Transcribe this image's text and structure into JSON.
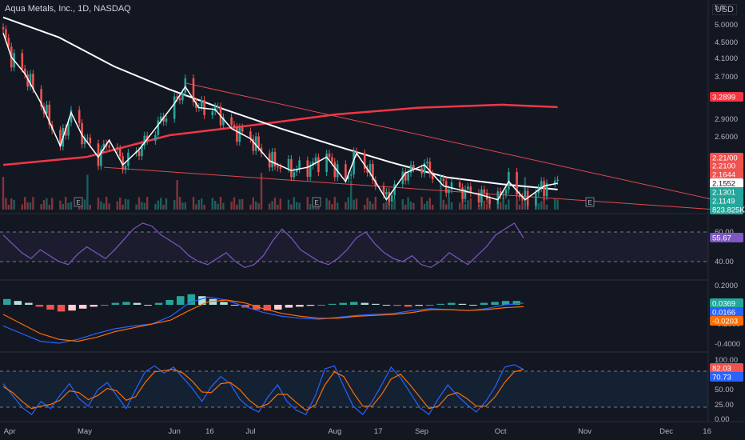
{
  "header": {
    "symbol": "Aqua Metals, Inc., 1D, NASDAQ",
    "currency": "USD"
  },
  "time_axis": [
    "Apr",
    "May",
    "Jun",
    "16",
    "Jul",
    "Aug",
    "17",
    "Sep",
    "Oct",
    "Nov",
    "Dec",
    "16"
  ],
  "colors": {
    "bg": "#131722",
    "up": "#26a69a",
    "down": "#ef5350",
    "ma_white": "#ffffff",
    "ma_red": "#f23645",
    "rsi": "#7e57c2",
    "macd": "#2962ff",
    "signal": "#ff6d00",
    "trend": "#e0494d"
  },
  "chart_data": [
    {
      "type": "candlestick",
      "panel": "price",
      "y_scale": "log",
      "ylim": [
        1.95,
        5.5
      ],
      "y_ticks": [
        "5.5",
        "5.0000",
        "4.5000",
        "4.1000",
        "3.7000",
        "3.2899",
        "2.9000",
        "2.6000"
      ],
      "price_badges": [
        {
          "label": "2.21/00",
          "color": "#ef5350"
        },
        {
          "label": "2.2100",
          "color": "#ef5350"
        },
        {
          "label": "2.1644",
          "color": "#ef5350"
        },
        {
          "label": "2.1552",
          "color": "#ffffff"
        },
        {
          "label": "2.1301",
          "color": "#26a69a"
        },
        {
          "label": "2.1149",
          "color": "#26a69a"
        },
        {
          "label": "823.825K",
          "color": "#26a69a"
        }
      ],
      "ma_badge": "3.2899",
      "event_markers": [
        "E",
        "E",
        "E"
      ],
      "anchors": [
        [
          "2024-04-01",
          4.8
        ],
        [
          "2024-04-04",
          4.25
        ],
        [
          "2024-04-09",
          3.9
        ],
        [
          "2024-04-15",
          3.35
        ],
        [
          "2024-04-22",
          2.7
        ],
        [
          "2024-04-26",
          3.2
        ],
        [
          "2024-04-30",
          2.85
        ],
        [
          "2024-05-06",
          2.55
        ],
        [
          "2024-05-10",
          2.78
        ],
        [
          "2024-05-15",
          2.45
        ],
        [
          "2024-05-21",
          2.65
        ],
        [
          "2024-05-27",
          2.95
        ],
        [
          "2024-06-03",
          3.35
        ],
        [
          "2024-06-07",
          3.65
        ],
        [
          "2024-06-12",
          3.28
        ],
        [
          "2024-06-18",
          3.25
        ],
        [
          "2024-06-24",
          2.95
        ],
        [
          "2024-07-01",
          2.8
        ],
        [
          "2024-07-08",
          2.5
        ],
        [
          "2024-07-16",
          2.38
        ],
        [
          "2024-07-22",
          2.42
        ],
        [
          "2024-07-29",
          2.55
        ],
        [
          "2024-08-05",
          2.25
        ],
        [
          "2024-08-09",
          2.6
        ],
        [
          "2024-08-14",
          2.35
        ],
        [
          "2024-08-20",
          2.05
        ],
        [
          "2024-08-27",
          2.35
        ],
        [
          "2024-09-03",
          2.45
        ],
        [
          "2024-09-10",
          2.2
        ],
        [
          "2024-09-17",
          2.15
        ],
        [
          "2024-09-24",
          2.1
        ],
        [
          "2024-09-30",
          2.05
        ],
        [
          "2024-10-04",
          2.25
        ],
        [
          "2024-10-10",
          2.05
        ],
        [
          "2024-10-17",
          2.2
        ],
        [
          "2024-10-22",
          2.23
        ]
      ],
      "sma_white": [
        [
          0,
          5.2
        ],
        [
          0.1,
          4.7
        ],
        [
          0.2,
          4.05
        ],
        [
          0.3,
          3.6
        ],
        [
          0.4,
          3.25
        ],
        [
          0.5,
          2.95
        ],
        [
          0.6,
          2.7
        ],
        [
          0.7,
          2.48
        ],
        [
          0.8,
          2.3
        ],
        [
          0.9,
          2.22
        ],
        [
          1.0,
          2.16
        ]
      ],
      "sma_red": [
        [
          0,
          2.45
        ],
        [
          0.15,
          2.55
        ],
        [
          0.3,
          2.85
        ],
        [
          0.45,
          3.0
        ],
        [
          0.6,
          3.17
        ],
        [
          0.75,
          3.28
        ],
        [
          0.9,
          3.33
        ],
        [
          1.0,
          3.29
        ]
      ]
    },
    {
      "type": "line",
      "panel": "rsi",
      "name": "RSI",
      "y_ticks": [
        "60.00",
        "40.00"
      ],
      "last_value": "55.67",
      "values": [
        58,
        52,
        46,
        42,
        48,
        44,
        40,
        38,
        45,
        50,
        46,
        42,
        48,
        55,
        62,
        66,
        64,
        58,
        54,
        50,
        44,
        40,
        38,
        42,
        46,
        40,
        36,
        38,
        44,
        54,
        62,
        56,
        48,
        44,
        40,
        38,
        42,
        48,
        56,
        60,
        52,
        46,
        42,
        40,
        44,
        38,
        36,
        40,
        46,
        42,
        38,
        44,
        50,
        58,
        62,
        66,
        56
      ]
    },
    {
      "type": "macd",
      "panel": "macd",
      "y_ticks": [
        "0.2000",
        "-0.2000",
        "-0.4000"
      ],
      "badges": [
        {
          "label": "0.0369",
          "color": "#26a69a"
        },
        {
          "label": "0.0166",
          "color": "#2962ff"
        },
        {
          "label": "-0.0203",
          "color": "#ff6d00"
        }
      ],
      "histogram": [
        0.06,
        0.04,
        0.02,
        -0.02,
        -0.05,
        -0.07,
        -0.06,
        -0.04,
        -0.02,
        0.0,
        0.02,
        0.03,
        0.02,
        0.0,
        0.02,
        0.05,
        0.09,
        0.11,
        0.09,
        0.06,
        0.03,
        0.0,
        -0.03,
        -0.05,
        -0.06,
        -0.05,
        -0.03,
        -0.02,
        -0.01,
        0.0,
        0.01,
        0.02,
        0.03,
        0.02,
        0.01,
        0.0,
        -0.01,
        -0.02,
        -0.01,
        0.0,
        0.01,
        0.02,
        0.01,
        0.0,
        0.02,
        0.03,
        0.04,
        0.04
      ],
      "macd_line": [
        -0.22,
        -0.3,
        -0.38,
        -0.4,
        -0.36,
        -0.3,
        -0.25,
        -0.22,
        -0.2,
        -0.12,
        0.02,
        0.08,
        0.05,
        -0.02,
        -0.08,
        -0.12,
        -0.14,
        -0.15,
        -0.13,
        -0.11,
        -0.1,
        -0.09,
        -0.06,
        -0.04,
        -0.05,
        -0.06,
        -0.04,
        0.0,
        0.017
      ],
      "signal_line": [
        -0.1,
        -0.2,
        -0.3,
        -0.36,
        -0.38,
        -0.34,
        -0.28,
        -0.24,
        -0.2,
        -0.16,
        -0.06,
        0.03,
        0.05,
        0.02,
        -0.04,
        -0.09,
        -0.12,
        -0.14,
        -0.14,
        -0.12,
        -0.11,
        -0.1,
        -0.08,
        -0.05,
        -0.05,
        -0.06,
        -0.05,
        -0.03,
        -0.02
      ]
    },
    {
      "type": "line",
      "panel": "stochastic",
      "y_ticks": [
        "100.00",
        "75.00",
        "50.00",
        "25.00",
        "0.00"
      ],
      "badges": [
        {
          "label": "82.03",
          "color": "#ef5350"
        },
        {
          "label": "70.73",
          "color": "#2962ff"
        }
      ],
      "series": [
        {
          "values": [
            60,
            40,
            20,
            8,
            30,
            18,
            40,
            60,
            35,
            22,
            50,
            62,
            40,
            18,
            50,
            80,
            90,
            78,
            88,
            70,
            52,
            30,
            55,
            72,
            60,
            34,
            20,
            12,
            38,
            58,
            30,
            15,
            8,
            40,
            85,
            90,
            55,
            22,
            8,
            30,
            58,
            88,
            70,
            45,
            20,
            8,
            35,
            58,
            40,
            25,
            12,
            30,
            55,
            88,
            92,
            84
          ]
        },
        {
          "values": [
            55,
            45,
            30,
            18,
            22,
            25,
            32,
            48,
            45,
            33,
            40,
            52,
            48,
            32,
            38,
            62,
            80,
            82,
            84,
            78,
            64,
            46,
            45,
            60,
            62,
            50,
            32,
            20,
            26,
            42,
            42,
            28,
            15,
            24,
            58,
            80,
            72,
            45,
            22,
            22,
            42,
            68,
            76,
            58,
            38,
            18,
            22,
            40,
            45,
            35,
            22,
            22,
            38,
            62,
            80,
            84
          ]
        }
      ]
    }
  ]
}
